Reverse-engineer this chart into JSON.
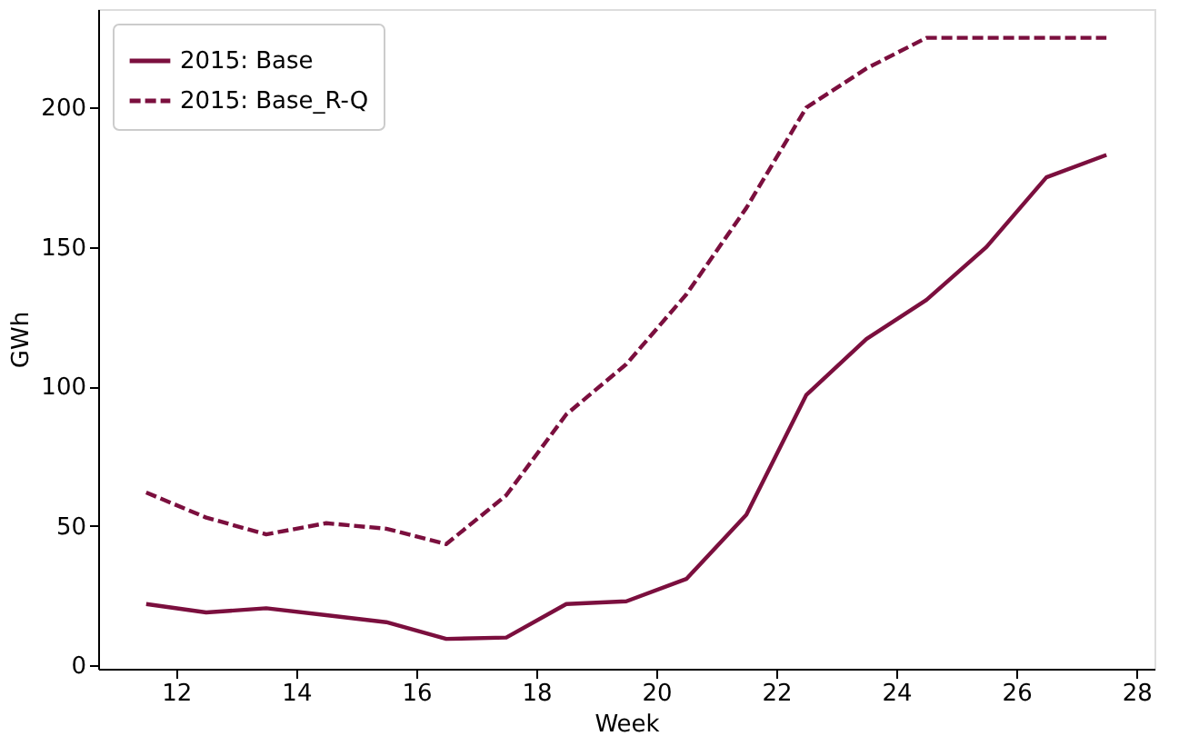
{
  "chart_data": {
    "type": "line",
    "xlabel": "Week",
    "ylabel": "GWh",
    "x": [
      11.5,
      12.5,
      13.5,
      14.5,
      15.5,
      16.5,
      17.5,
      18.5,
      19.5,
      20.5,
      21.5,
      22.5,
      23.5,
      24.5,
      25.5,
      26.5,
      27.5
    ],
    "series": [
      {
        "name": "2015: Base",
        "color": "#7b0f3e",
        "line_style": "solid",
        "values": [
          22,
          19,
          20.5,
          18,
          15.5,
          9.5,
          10,
          22,
          23,
          31,
          54,
          97,
          117,
          131,
          150,
          175,
          183
        ]
      },
      {
        "name": "2015: Base_R-Q",
        "color": "#7b0f3e",
        "line_style": "dashed",
        "values": [
          62,
          53,
          47,
          51,
          49,
          43.5,
          61,
          90,
          108,
          133,
          164,
          200,
          214,
          225,
          225,
          225,
          225
        ]
      }
    ],
    "xlim": [
      10.7,
      28.3
    ],
    "ylim": [
      -1.2,
      235.3
    ],
    "xticks": [
      12,
      14,
      16,
      18,
      20,
      22,
      24,
      26,
      28
    ],
    "yticks": [
      0,
      50,
      100,
      150,
      200
    ],
    "grid": false,
    "legend": "top left",
    "marker": "none"
  }
}
